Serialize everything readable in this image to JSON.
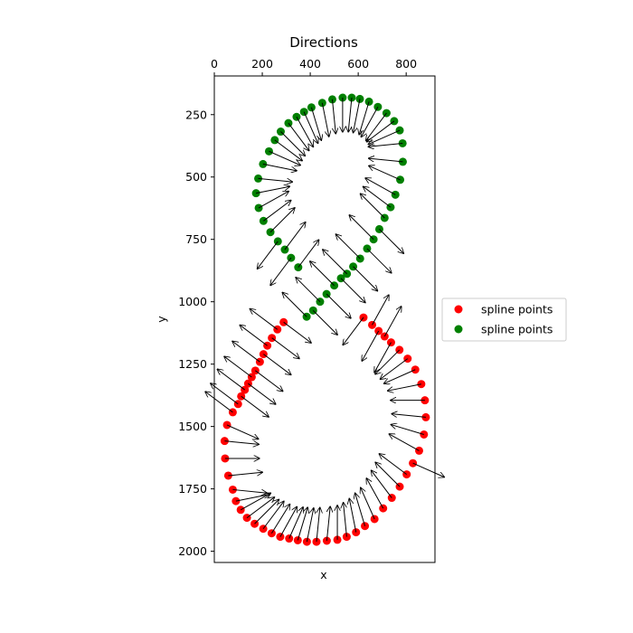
{
  "chart_data": {
    "type": "scatter",
    "title": "Directions",
    "xlabel": "x",
    "ylabel": "y",
    "xlim": [
      0,
      920
    ],
    "ylim": [
      2045,
      95
    ],
    "y_inverted": true,
    "x_axis_position": "top",
    "xticks": [
      0,
      200,
      400,
      600,
      800
    ],
    "yticks": [
      250,
      500,
      750,
      1000,
      1250,
      1500,
      1750,
      2000
    ],
    "grid": false,
    "legend": {
      "placement": "right-outside"
    },
    "series": [
      {
        "name": "spline points",
        "color": "#ff0000",
        "marker": "circle",
        "points": [
          [
            622,
            1063
          ],
          [
            658,
            1093
          ],
          [
            685,
            1117
          ],
          [
            710,
            1139
          ],
          [
            737,
            1163
          ],
          [
            772,
            1193
          ],
          [
            806,
            1228
          ],
          [
            838,
            1272
          ],
          [
            863,
            1330
          ],
          [
            878,
            1395
          ],
          [
            882,
            1463
          ],
          [
            874,
            1532
          ],
          [
            854,
            1597
          ],
          [
            828,
            1647
          ],
          [
            802,
            1692
          ],
          [
            773,
            1741
          ],
          [
            740,
            1786
          ],
          [
            704,
            1828
          ],
          [
            668,
            1871
          ],
          [
            628,
            1899
          ],
          [
            591,
            1924
          ],
          [
            552,
            1942
          ],
          [
            513,
            1954
          ],
          [
            469,
            1958
          ],
          [
            426,
            1962
          ],
          [
            386,
            1962
          ],
          [
            348,
            1956
          ],
          [
            312,
            1949
          ],
          [
            275,
            1942
          ],
          [
            239,
            1928
          ],
          [
            204,
            1910
          ],
          [
            168,
            1890
          ],
          [
            136,
            1866
          ],
          [
            110,
            1834
          ],
          [
            90,
            1799
          ],
          [
            77,
            1753
          ],
          [
            58,
            1697
          ],
          [
            45,
            1628
          ],
          [
            43,
            1558
          ],
          [
            53,
            1494
          ],
          [
            77,
            1443
          ],
          [
            99,
            1410
          ],
          [
            112,
            1379
          ],
          [
            127,
            1353
          ],
          [
            141,
            1328
          ],
          [
            156,
            1302
          ],
          [
            171,
            1276
          ],
          [
            190,
            1241
          ],
          [
            205,
            1210
          ],
          [
            221,
            1176
          ],
          [
            240,
            1145
          ],
          [
            263,
            1111
          ],
          [
            289,
            1082
          ]
        ],
        "directions": [
          [
            -0.6,
            0.8
          ],
          [
            0.5,
            -0.9
          ],
          [
            -0.5,
            0.9
          ],
          [
            0.5,
            -0.9
          ],
          [
            -0.5,
            0.9
          ],
          [
            -0.7,
            0.7
          ],
          [
            -0.8,
            0.6
          ],
          [
            -0.9,
            0.4
          ],
          [
            -1,
            0.2
          ],
          [
            -1,
            0
          ],
          [
            -1,
            -0.1
          ],
          [
            -1,
            -0.3
          ],
          [
            -0.9,
            -0.5
          ],
          [
            0.9,
            0.4
          ],
          [
            -0.8,
            -0.6
          ],
          [
            -0.7,
            -0.7
          ],
          [
            -0.6,
            -0.8
          ],
          [
            -0.5,
            -0.9
          ],
          [
            -0.4,
            -0.9
          ],
          [
            -0.3,
            -1
          ],
          [
            -0.2,
            -1
          ],
          [
            -0.1,
            -1
          ],
          [
            0,
            -1
          ],
          [
            0.1,
            -1
          ],
          [
            0.1,
            -1
          ],
          [
            0.2,
            -1
          ],
          [
            0.3,
            -1
          ],
          [
            0.4,
            -0.9
          ],
          [
            0.5,
            -0.9
          ],
          [
            0.5,
            -0.8
          ],
          [
            0.6,
            -0.8
          ],
          [
            0.7,
            -0.7
          ],
          [
            0.8,
            -0.6
          ],
          [
            0.9,
            -0.5
          ],
          [
            1,
            -0.2
          ],
          [
            1,
            0.1
          ],
          [
            1,
            -0.1
          ],
          [
            1,
            0
          ],
          [
            1,
            0.1
          ],
          [
            0.9,
            0.4
          ],
          [
            -0.8,
            -0.6
          ],
          [
            -0.8,
            -0.6
          ],
          [
            0.8,
            0.6
          ],
          [
            -0.8,
            -0.6
          ],
          [
            0.8,
            0.6
          ],
          [
            -0.8,
            -0.6
          ],
          [
            0.8,
            0.6
          ],
          [
            -0.8,
            -0.6
          ],
          [
            0.8,
            0.6
          ],
          [
            -0.8,
            -0.6
          ],
          [
            0.8,
            0.6
          ],
          [
            -0.8,
            -0.6
          ],
          [
            0.8,
            0.6
          ]
        ]
      },
      {
        "name": "spline points",
        "color": "#008000",
        "marker": "circle",
        "points": [
          [
            350,
            862
          ],
          [
            320,
            824
          ],
          [
            294,
            791
          ],
          [
            265,
            758
          ],
          [
            234,
            721
          ],
          [
            205,
            676
          ],
          [
            185,
            624
          ],
          [
            174,
            565
          ],
          [
            183,
            506
          ],
          [
            203,
            448
          ],
          [
            228,
            397
          ],
          [
            252,
            352
          ],
          [
            277,
            318
          ],
          [
            309,
            284
          ],
          [
            343,
            259
          ],
          [
            374,
            239
          ],
          [
            405,
            221
          ],
          [
            450,
            203
          ],
          [
            492,
            189
          ],
          [
            535,
            182
          ],
          [
            573,
            182
          ],
          [
            607,
            187
          ],
          [
            645,
            198
          ],
          [
            682,
            219
          ],
          [
            718,
            244
          ],
          [
            750,
            276
          ],
          [
            773,
            313
          ],
          [
            785,
            365
          ],
          [
            786,
            439
          ],
          [
            775,
            511
          ],
          [
            755,
            571
          ],
          [
            735,
            621
          ],
          [
            710,
            664
          ],
          [
            688,
            709
          ],
          [
            664,
            750
          ],
          [
            637,
            787
          ],
          [
            608,
            827
          ],
          [
            579,
            859
          ],
          [
            553,
            888
          ],
          [
            528,
            906
          ],
          [
            500,
            935
          ],
          [
            468,
            969
          ],
          [
            441,
            1000
          ],
          [
            412,
            1035
          ],
          [
            385,
            1060
          ]
        ],
        "directions": [
          [
            0.6,
            -0.8
          ],
          [
            -0.6,
            0.8
          ],
          [
            0.6,
            -0.8
          ],
          [
            -0.6,
            0.8
          ],
          [
            0.7,
            -0.7
          ],
          [
            0.8,
            -0.6
          ],
          [
            0.9,
            -0.5
          ],
          [
            1,
            -0.2
          ],
          [
            1,
            0.1
          ],
          [
            1,
            0.2
          ],
          [
            0.9,
            0.4
          ],
          [
            0.8,
            0.6
          ],
          [
            0.7,
            0.7
          ],
          [
            0.6,
            0.8
          ],
          [
            0.5,
            0.9
          ],
          [
            0.4,
            0.9
          ],
          [
            0.3,
            1
          ],
          [
            0.2,
            1
          ],
          [
            0.1,
            1
          ],
          [
            0,
            1
          ],
          [
            -0.1,
            1
          ],
          [
            -0.2,
            1
          ],
          [
            -0.3,
            1
          ],
          [
            -0.5,
            0.9
          ],
          [
            -0.6,
            0.8
          ],
          [
            -0.8,
            0.6
          ],
          [
            -0.9,
            0.4
          ],
          [
            -1,
            0.1
          ],
          [
            -1,
            -0.1
          ],
          [
            -0.9,
            -0.4
          ],
          [
            -0.9,
            -0.5
          ],
          [
            -0.8,
            -0.6
          ],
          [
            -0.7,
            -0.7
          ],
          [
            0.7,
            0.7
          ],
          [
            -0.7,
            -0.7
          ],
          [
            0.7,
            0.7
          ],
          [
            -0.7,
            -0.7
          ],
          [
            0.7,
            0.7
          ],
          [
            -0.7,
            -0.7
          ],
          [
            0.7,
            0.7
          ],
          [
            -0.7,
            -0.7
          ],
          [
            0.7,
            0.7
          ],
          [
            -0.7,
            -0.7
          ],
          [
            0.7,
            0.7
          ],
          [
            -0.7,
            -0.7
          ]
        ]
      }
    ]
  }
}
